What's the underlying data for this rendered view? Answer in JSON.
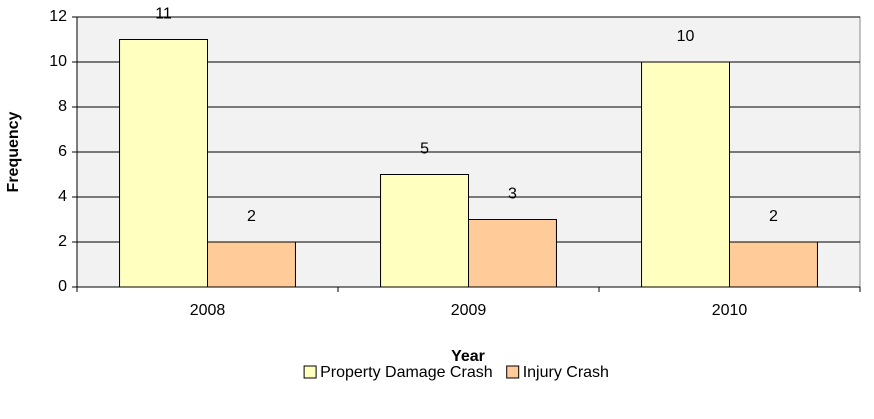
{
  "chart_data": {
    "type": "bar",
    "x_label": "Year",
    "y_label": "Frequency",
    "categories": [
      "2008",
      "2009",
      "2010"
    ],
    "series": [
      {
        "name": "Property Damage Crash",
        "color": "#ffffc0",
        "values": [
          11,
          5,
          10
        ]
      },
      {
        "name": "Injury Crash",
        "color": "#ffcc99",
        "values": [
          2,
          3,
          2
        ]
      }
    ],
    "ylim": [
      0,
      12
    ],
    "yticks": [
      0,
      2,
      4,
      6,
      8,
      10,
      12
    ],
    "grid": true,
    "legend": "bottom"
  }
}
